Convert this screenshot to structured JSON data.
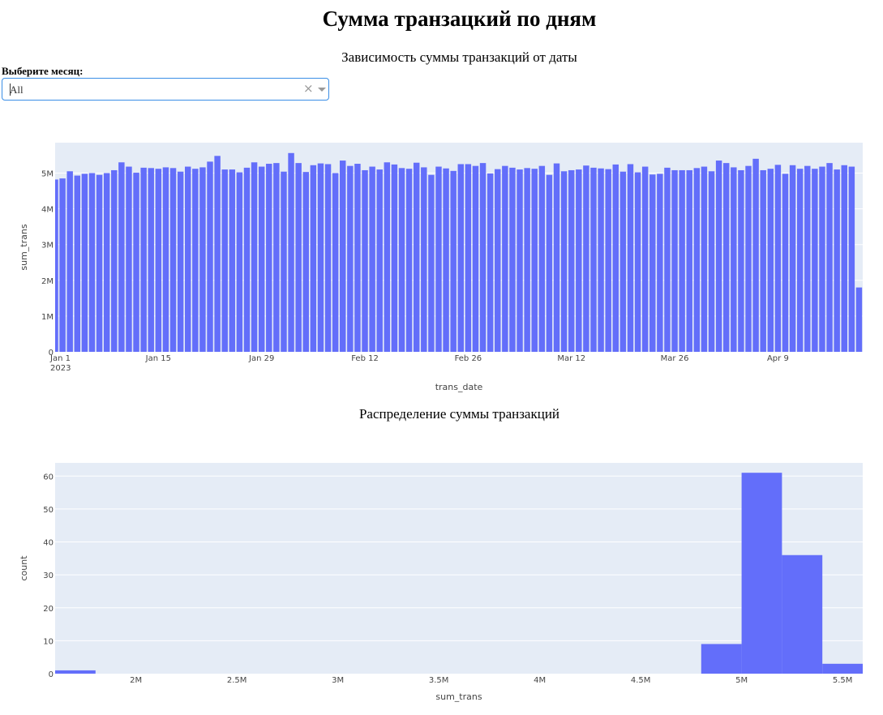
{
  "page": {
    "title": "Сумма транзацкий по дням",
    "dropdown_label": "Выберите месяц:",
    "dropdown_value": "All",
    "clear_icon": "close-icon",
    "arrow_icon": "chevron-down-icon"
  },
  "colors": {
    "bar": "#636efa",
    "plot_bg": "#e5ecf6",
    "grid": "#ffffff"
  },
  "chart_data": [
    {
      "type": "bar",
      "title": "Зависимость суммы транзакций от даты",
      "xlabel": "trans_date",
      "ylabel": "sum_trans",
      "x_start": "2023-01-01",
      "x_ticks": [
        "Jan 1",
        "Jan 15",
        "Jan 29",
        "Feb 12",
        "Feb 26",
        "Mar 12",
        "Mar 26",
        "Apr 9"
      ],
      "x_year_label": "2023",
      "y_ticks": [
        "0",
        "1M",
        "2M",
        "3M",
        "4M",
        "5M"
      ],
      "ylim": [
        0,
        5850000
      ],
      "grid": true,
      "values": [
        4820000,
        4850000,
        5050000,
        4930000,
        4980000,
        5000000,
        4950000,
        5000000,
        5080000,
        5300000,
        5180000,
        5010000,
        5150000,
        5140000,
        5120000,
        5160000,
        5140000,
        5040000,
        5180000,
        5120000,
        5160000,
        5320000,
        5480000,
        5100000,
        5100000,
        5020000,
        5150000,
        5300000,
        5180000,
        5260000,
        5280000,
        5040000,
        5560000,
        5280000,
        5030000,
        5220000,
        5270000,
        5250000,
        5000000,
        5350000,
        5200000,
        5260000,
        5080000,
        5180000,
        5100000,
        5300000,
        5240000,
        5140000,
        5120000,
        5290000,
        5160000,
        4950000,
        5180000,
        5130000,
        5060000,
        5250000,
        5250000,
        5200000,
        5280000,
        4990000,
        5110000,
        5200000,
        5150000,
        5100000,
        5140000,
        5120000,
        5200000,
        4950000,
        5270000,
        5050000,
        5080000,
        5100000,
        5210000,
        5150000,
        5130000,
        5110000,
        5240000,
        5040000,
        5250000,
        5020000,
        5180000,
        4960000,
        4980000,
        5150000,
        5080000,
        5080000,
        5080000,
        5140000,
        5180000,
        5050000,
        5350000,
        5280000,
        5160000,
        5080000,
        5200000,
        5400000,
        5080000,
        5120000,
        5230000,
        4980000,
        5220000,
        5120000,
        5200000,
        5120000,
        5180000,
        5280000,
        5100000,
        5220000,
        5180000,
        1800000
      ]
    },
    {
      "type": "bar",
      "title": "Распределение суммы транзакций",
      "xlabel": "sum_trans",
      "ylabel": "count",
      "bins": [
        {
          "start": 1600000,
          "end": 1800000,
          "count": 1
        },
        {
          "start": 4800000,
          "end": 5000000,
          "count": 9
        },
        {
          "start": 5000000,
          "end": 5200000,
          "count": 61
        },
        {
          "start": 5200000,
          "end": 5400000,
          "count": 36
        },
        {
          "start": 5400000,
          "end": 5600000,
          "count": 3
        }
      ],
      "xlim": [
        1600000,
        5600000
      ],
      "x_ticks": [
        {
          "value": 2000000,
          "label": "2M"
        },
        {
          "value": 2500000,
          "label": "2.5M"
        },
        {
          "value": 3000000,
          "label": "3M"
        },
        {
          "value": 3500000,
          "label": "3.5M"
        },
        {
          "value": 4000000,
          "label": "4M"
        },
        {
          "value": 4500000,
          "label": "4.5M"
        },
        {
          "value": 5000000,
          "label": "5M"
        },
        {
          "value": 5500000,
          "label": "5.5M"
        }
      ],
      "y_ticks": [
        "0",
        "10",
        "20",
        "30",
        "40",
        "50",
        "60"
      ],
      "ylim": [
        0,
        64
      ],
      "grid": true
    }
  ]
}
